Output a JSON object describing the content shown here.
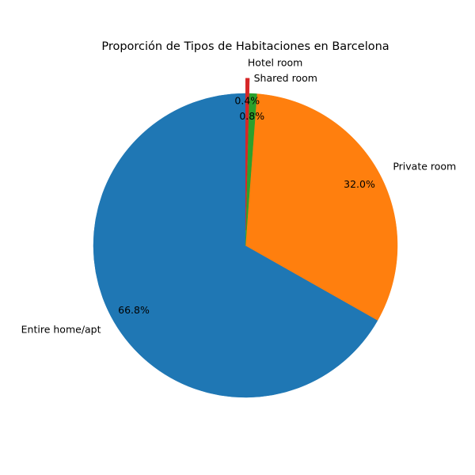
{
  "chart_data": {
    "type": "pie",
    "title": "Proporción de Tipos de Habitaciones en Barcelona",
    "slices": [
      {
        "label": "Entire home/apt",
        "value": 66.8,
        "pct_label": "66.8%",
        "color": "#1f77b4",
        "exploded": false
      },
      {
        "label": "Private room",
        "value": 32.0,
        "pct_label": "32.0%",
        "color": "#ff7f0e",
        "exploded": false
      },
      {
        "label": "Shared room",
        "value": 0.8,
        "pct_label": "0.8%",
        "color": "#2ca02c",
        "exploded": false
      },
      {
        "label": "Hotel room",
        "value": 0.4,
        "pct_label": "0.4%",
        "color": "#d62728",
        "exploded": true
      }
    ],
    "start_angle_deg": 90,
    "direction": "counterclockwise",
    "legend": "none"
  }
}
